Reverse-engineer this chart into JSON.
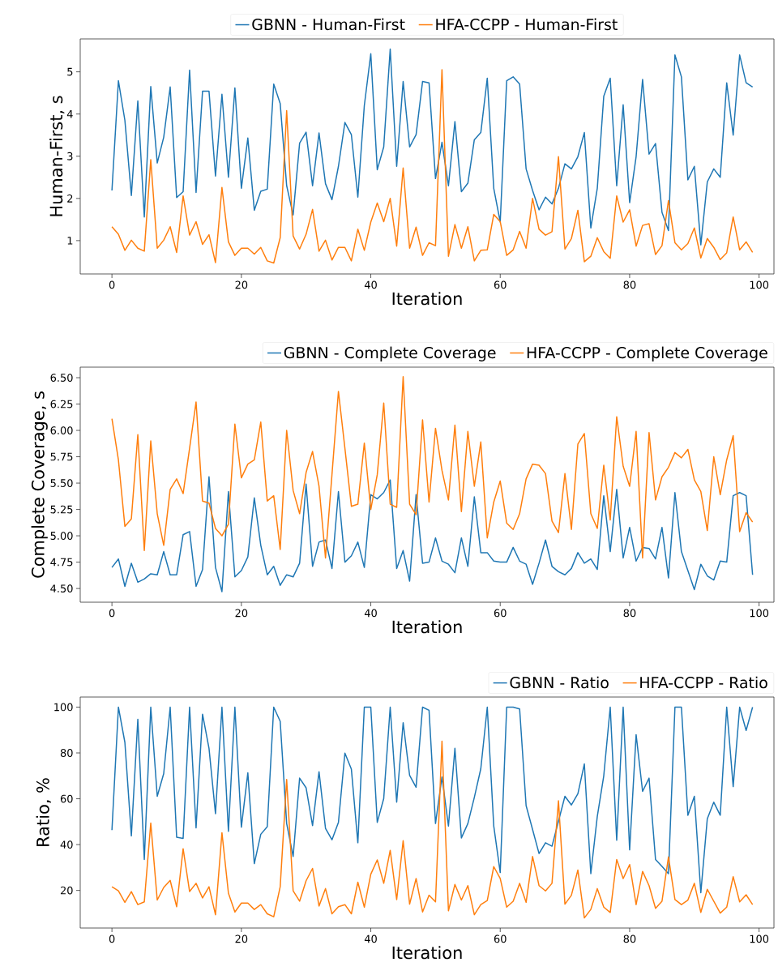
{
  "chart_data": [
    {
      "type": "line",
      "xlabel": "Iteration",
      "ylabel": "Human-First, s",
      "legend": "top",
      "xlim": [
        -4.9,
        102.3
      ],
      "ylim": [
        0.21,
        5.78
      ],
      "xticks": [
        0,
        20,
        40,
        60,
        80,
        100
      ],
      "yticks": [
        1,
        2,
        3,
        4,
        5
      ],
      "x": [
        0,
        1,
        2,
        3,
        4,
        5,
        6,
        7,
        8,
        9,
        10,
        11,
        12,
        13,
        14,
        15,
        16,
        17,
        18,
        19,
        20,
        21,
        22,
        23,
        24,
        25,
        26,
        27,
        28,
        29,
        30,
        31,
        32,
        33,
        34,
        35,
        36,
        37,
        38,
        39,
        40,
        41,
        42,
        43,
        44,
        45,
        46,
        47,
        48,
        49,
        50,
        51,
        52,
        53,
        54,
        55,
        56,
        57,
        58,
        59,
        60,
        61,
        62,
        63,
        64,
        65,
        66,
        67,
        68,
        69,
        70,
        71,
        72,
        73,
        74,
        75,
        76,
        77,
        78,
        79,
        80,
        81,
        82,
        83,
        84,
        85,
        86,
        87,
        88,
        89,
        90,
        91,
        92,
        93,
        94,
        95,
        96,
        97,
        98,
        99
      ],
      "series": [
        {
          "name": "GBNN - Human-First",
          "color": "#1f77b4",
          "values": [
            2.19,
            4.79,
            3.85,
            2.07,
            4.31,
            1.56,
            4.65,
            2.84,
            3.45,
            4.64,
            2.02,
            2.16,
            5.04,
            2.14,
            4.54,
            4.54,
            2.53,
            4.47,
            2.5,
            4.62,
            2.24,
            3.43,
            1.72,
            2.17,
            2.22,
            4.71,
            4.25,
            2.3,
            1.61,
            3.31,
            3.57,
            2.3,
            3.55,
            2.35,
            1.97,
            2.76,
            3.8,
            3.51,
            2.03,
            4.2,
            5.43,
            2.68,
            3.22,
            5.54,
            2.76,
            4.77,
            3.22,
            3.51,
            4.77,
            4.74,
            2.47,
            3.33,
            2.3,
            3.82,
            2.16,
            2.36,
            3.39,
            3.56,
            4.85,
            2.24,
            1.44,
            4.79,
            4.88,
            4.71,
            2.7,
            2.19,
            1.73,
            2.03,
            1.87,
            2.24,
            2.82,
            2.7,
            2.99,
            3.56,
            1.3,
            2.24,
            4.42,
            4.85,
            2.3,
            4.22,
            1.9,
            2.99,
            4.82,
            3.05,
            3.3,
            1.67,
            1.24,
            5.4,
            4.88,
            2.44,
            2.76,
            0.9,
            2.39,
            2.7,
            2.5,
            4.74,
            3.5,
            5.4,
            4.74,
            4.64
          ]
        },
        {
          "name": "HFA-CCPP - Human-First",
          "color": "#ff7f0e",
          "values": [
            1.33,
            1.15,
            0.77,
            1.01,
            0.82,
            0.75,
            2.92,
            0.82,
            1.01,
            1.33,
            0.72,
            2.06,
            1.13,
            1.45,
            0.91,
            1.14,
            0.48,
            2.26,
            0.97,
            0.65,
            0.82,
            0.82,
            0.68,
            0.84,
            0.52,
            0.47,
            1.07,
            4.08,
            1.11,
            0.8,
            1.15,
            1.74,
            0.75,
            1.01,
            0.54,
            0.84,
            0.84,
            0.52,
            1.27,
            0.77,
            1.44,
            1.89,
            1.45,
            2.0,
            0.87,
            2.72,
            0.82,
            1.32,
            0.65,
            0.95,
            0.88,
            5.05,
            0.63,
            1.38,
            0.82,
            1.33,
            0.52,
            0.77,
            0.78,
            1.62,
            1.45,
            0.65,
            0.78,
            1.22,
            0.82,
            2.0,
            1.27,
            1.13,
            1.21,
            2.99,
            0.8,
            1.05,
            1.72,
            0.5,
            0.63,
            1.07,
            0.74,
            0.58,
            2.06,
            1.44,
            1.73,
            0.87,
            1.36,
            1.4,
            0.67,
            0.88,
            1.95,
            0.95,
            0.78,
            0.93,
            1.3,
            0.59,
            1.05,
            0.84,
            0.55,
            0.71,
            1.56,
            0.78,
            0.97,
            0.72
          ]
        }
      ]
    },
    {
      "type": "line",
      "xlabel": "Iteration",
      "ylabel": "Complete Coverage, s",
      "legend": "top right",
      "xlim": [
        -4.9,
        102.3
      ],
      "ylim": [
        4.37,
        6.6
      ],
      "xticks": [
        0,
        20,
        40,
        60,
        80,
        100
      ],
      "yticks": [
        {
          "value": 4.5,
          "label": "4.50"
        },
        {
          "value": 4.75,
          "label": "4.75"
        },
        {
          "value": 5.0,
          "label": "5.00"
        },
        {
          "value": 5.25,
          "label": "5.25"
        },
        {
          "value": 5.5,
          "label": "5.50"
        },
        {
          "value": 5.75,
          "label": "5.75"
        },
        {
          "value": 6.0,
          "label": "6.00"
        },
        {
          "value": 6.25,
          "label": "6.25"
        },
        {
          "value": 6.5,
          "label": "6.50"
        }
      ],
      "x": [
        0,
        1,
        2,
        3,
        4,
        5,
        6,
        7,
        8,
        9,
        10,
        11,
        12,
        13,
        14,
        15,
        16,
        17,
        18,
        19,
        20,
        21,
        22,
        23,
        24,
        25,
        26,
        27,
        28,
        29,
        30,
        31,
        32,
        33,
        34,
        35,
        36,
        37,
        38,
        39,
        40,
        41,
        42,
        43,
        44,
        45,
        46,
        47,
        48,
        49,
        50,
        51,
        52,
        53,
        54,
        55,
        56,
        57,
        58,
        59,
        60,
        61,
        62,
        63,
        64,
        65,
        66,
        67,
        68,
        69,
        70,
        71,
        72,
        73,
        74,
        75,
        76,
        77,
        78,
        79,
        80,
        81,
        82,
        83,
        84,
        85,
        86,
        87,
        88,
        89,
        90,
        91,
        92,
        93,
        94,
        95,
        96,
        97,
        98,
        99
      ],
      "series": [
        {
          "name": "GBNN - Complete Coverage",
          "color": "#1f77b4",
          "values": [
            4.7,
            4.78,
            4.52,
            4.74,
            4.56,
            4.59,
            4.64,
            4.63,
            4.85,
            4.63,
            4.63,
            5.01,
            5.04,
            4.52,
            4.68,
            5.56,
            4.7,
            4.47,
            5.42,
            4.61,
            4.67,
            4.8,
            5.36,
            4.91,
            4.63,
            4.71,
            4.53,
            4.63,
            4.61,
            4.74,
            5.49,
            4.71,
            4.94,
            4.96,
            4.69,
            5.42,
            4.75,
            4.81,
            4.94,
            4.7,
            5.39,
            5.35,
            5.41,
            5.53,
            4.69,
            4.86,
            4.57,
            5.39,
            4.74,
            4.75,
            4.98,
            4.76,
            4.73,
            4.65,
            4.98,
            4.71,
            5.37,
            4.84,
            4.84,
            4.76,
            4.75,
            4.75,
            4.89,
            4.76,
            4.73,
            4.54,
            4.74,
            4.96,
            4.71,
            4.66,
            4.63,
            4.69,
            4.84,
            4.74,
            4.78,
            4.68,
            5.38,
            4.85,
            5.44,
            4.79,
            5.08,
            4.76,
            4.89,
            4.88,
            4.78,
            5.08,
            4.6,
            5.41,
            4.85,
            4.67,
            4.49,
            4.73,
            4.62,
            4.58,
            4.76,
            4.75,
            5.38,
            5.41,
            5.38,
            4.63
          ]
        },
        {
          "name": "HFA-CCPP - Complete Coverage",
          "color": "#ff7f0e",
          "values": [
            6.11,
            5.72,
            5.09,
            5.16,
            5.96,
            4.86,
            5.9,
            5.21,
            4.91,
            5.44,
            5.54,
            5.4,
            5.83,
            6.27,
            5.33,
            5.31,
            5.07,
            5.0,
            5.11,
            6.06,
            5.55,
            5.68,
            5.72,
            6.08,
            5.33,
            5.38,
            4.87,
            6.0,
            5.43,
            5.21,
            5.6,
            5.8,
            5.47,
            4.79,
            5.58,
            6.37,
            5.83,
            5.28,
            5.3,
            5.88,
            5.25,
            5.58,
            6.26,
            5.3,
            5.27,
            6.51,
            5.3,
            5.2,
            6.1,
            5.32,
            6.02,
            5.62,
            5.34,
            6.05,
            5.23,
            5.99,
            5.47,
            5.89,
            4.98,
            5.32,
            5.52,
            5.12,
            5.06,
            5.21,
            5.54,
            5.68,
            5.67,
            5.59,
            5.14,
            5.03,
            5.59,
            5.06,
            5.87,
            5.97,
            5.21,
            5.07,
            5.67,
            5.15,
            6.13,
            5.66,
            5.47,
            5.99,
            4.79,
            5.98,
            5.34,
            5.56,
            5.65,
            5.79,
            5.74,
            5.82,
            5.53,
            5.42,
            5.05,
            5.75,
            5.39,
            5.72,
            5.95,
            5.04,
            5.22,
            5.13
          ]
        }
      ]
    },
    {
      "type": "line",
      "xlabel": "Iteration",
      "ylabel": "Ratio, %",
      "legend": "top right",
      "xlim": [
        -4.9,
        102.3
      ],
      "ylim": [
        3.6,
        104.4
      ],
      "xticks": [
        0,
        20,
        40,
        60,
        80,
        100
      ],
      "yticks": [
        20,
        40,
        60,
        80,
        100
      ],
      "x": [
        0,
        1,
        2,
        3,
        4,
        5,
        6,
        7,
        8,
        9,
        10,
        11,
        12,
        13,
        14,
        15,
        16,
        17,
        18,
        19,
        20,
        21,
        22,
        23,
        24,
        25,
        26,
        27,
        28,
        29,
        30,
        31,
        32,
        33,
        34,
        35,
        36,
        37,
        38,
        39,
        40,
        41,
        42,
        43,
        44,
        45,
        46,
        47,
        48,
        49,
        50,
        51,
        52,
        53,
        54,
        55,
        56,
        57,
        58,
        59,
        60,
        61,
        62,
        63,
        64,
        65,
        66,
        67,
        68,
        69,
        70,
        71,
        72,
        73,
        74,
        75,
        76,
        77,
        78,
        79,
        80,
        81,
        82,
        83,
        84,
        85,
        86,
        87,
        88,
        89,
        90,
        91,
        92,
        93,
        94,
        95,
        96,
        97,
        98,
        99
      ],
      "series": [
        {
          "name": "GBNN - Ratio",
          "color": "#1f77b4",
          "values": [
            46.3,
            100,
            84.6,
            43.8,
            94.7,
            33.5,
            100,
            61.1,
            71.0,
            100,
            43.2,
            42.7,
            100,
            47.3,
            96.9,
            82.0,
            53.5,
            100,
            45.8,
            100,
            47.6,
            71.3,
            31.7,
            44.5,
            47.8,
            100,
            93.8,
            49.2,
            34.8,
            69.0,
            64.8,
            48.3,
            71.8,
            47.1,
            42.1,
            49.7,
            79.9,
            72.9,
            40.8,
            100,
            100,
            49.7,
            60.1,
            100,
            58.5,
            93.2,
            70.2,
            65.0,
            100,
            98.6,
            49.2,
            69.5,
            48.1,
            82.0,
            42.9,
            49.2,
            60.6,
            73.1,
            100,
            48.1,
            27.8,
            100,
            100,
            99.2,
            57.0,
            46.6,
            36.1,
            40.8,
            39.3,
            50.2,
            61.1,
            57.3,
            62.2,
            75.2,
            27.3,
            52.3,
            70,
            100,
            41.9,
            100,
            37.7,
            88,
            63.2,
            69.0,
            33.5,
            30.5,
            27.3,
            100,
            100,
            52.8,
            61.1,
            19.0,
            51.3,
            58.5,
            52.8,
            100,
            65.3,
            100,
            89.8,
            100
          ]
        },
        {
          "name": "HFA-CCPP - Ratio",
          "color": "#ff7f0e",
          "values": [
            21.6,
            19.8,
            14.8,
            19.5,
            13.8,
            15.0,
            49.4,
            15.8,
            21.3,
            24.4,
            12.9,
            38.2,
            19.5,
            23.1,
            16.7,
            21.6,
            9.4,
            45.2,
            18.8,
            10.6,
            14.5,
            14.5,
            11.7,
            13.8,
            9.8,
            8.5,
            21.6,
            68.4,
            19.8,
            15.3,
            24.2,
            29.6,
            13.2,
            20.8,
            9.8,
            12.9,
            13.8,
            9.8,
            23.6,
            12.7,
            27.1,
            33.3,
            23.1,
            37.5,
            16.0,
            41.7,
            14.0,
            25.2,
            10.6,
            17.9,
            15.0,
            85.1,
            11.1,
            22.6,
            15.8,
            22.1,
            9.4,
            13.8,
            15.6,
            30.4,
            25.2,
            12.7,
            15.3,
            23.1,
            14.8,
            34.8,
            22.1,
            19.8,
            23.1,
            59.1,
            14.0,
            17.9,
            28.9,
            8.0,
            11.7,
            20.8,
            12.7,
            10.4,
            33.5,
            25.2,
            31.3,
            13.8,
            28.3,
            22.1,
            12.2,
            15.3,
            34.6,
            16.0,
            13.8,
            15.8,
            23.1,
            10.4,
            20.5,
            15.3,
            10.1,
            12.7,
            26.0,
            15.0,
            18.1,
            13.8
          ]
        }
      ]
    }
  ]
}
